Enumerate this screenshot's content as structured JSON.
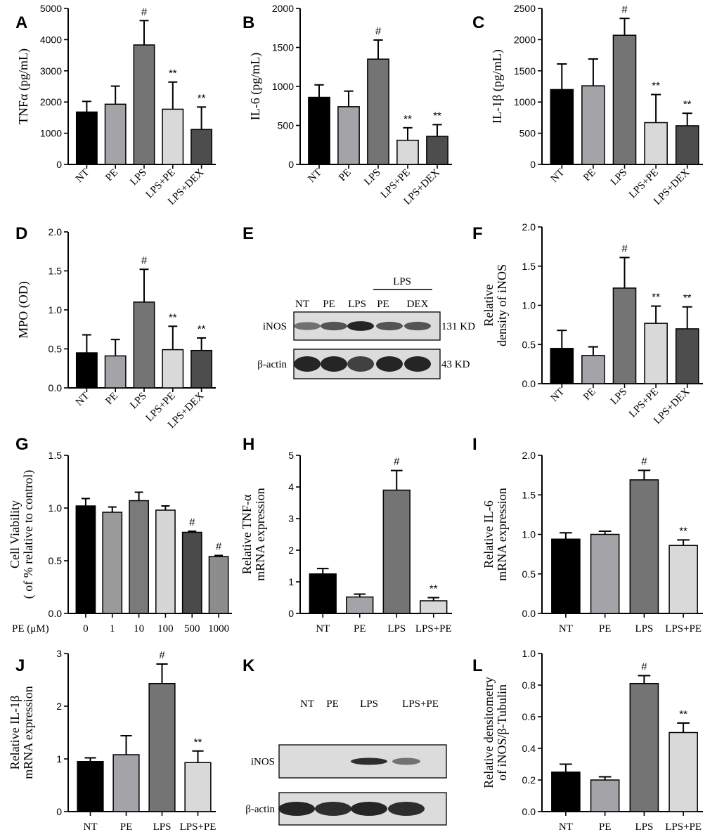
{
  "chart_data": [
    {
      "id": "A",
      "type": "bar",
      "ylabel": "TNFα (pg/mL)",
      "categories": [
        "NT",
        "PE",
        "LPS",
        "LPS+PE",
        "LPS+DEX"
      ],
      "values": [
        1680,
        1930,
        3830,
        1770,
        1120
      ],
      "errors": [
        340,
        580,
        780,
        870,
        720
      ],
      "annotations": [
        "",
        "",
        "#",
        "**",
        "**"
      ],
      "ylim": [
        0,
        5000
      ],
      "yticks": [
        "0",
        "1000",
        "2000",
        "3000",
        "4000",
        "5000"
      ]
    },
    {
      "id": "B",
      "type": "bar",
      "ylabel": "IL-6 (pg/mL)",
      "categories": [
        "NT",
        "PE",
        "LPS",
        "LPS+PE",
        "LPS+DEX"
      ],
      "values": [
        860,
        740,
        1350,
        310,
        360
      ],
      "errors": [
        160,
        200,
        245,
        160,
        150
      ],
      "annotations": [
        "",
        "",
        "#",
        "**",
        "**"
      ],
      "ylim": [
        0,
        2000
      ],
      "yticks": [
        "0",
        "500",
        "1000",
        "1500",
        "2000"
      ]
    },
    {
      "id": "C",
      "type": "bar",
      "ylabel": "IL-1β (pg/mL)",
      "categories": [
        "NT",
        "PE",
        "LPS",
        "LPS+PE",
        "LPS+DEX"
      ],
      "values": [
        1200,
        1260,
        2070,
        670,
        620
      ],
      "errors": [
        410,
        430,
        270,
        450,
        200
      ],
      "annotations": [
        "",
        "",
        "#",
        "**",
        "**"
      ],
      "ylim": [
        0,
        2500
      ],
      "yticks": [
        "0",
        "500",
        "1000",
        "1500",
        "2000",
        "2500"
      ]
    },
    {
      "id": "D",
      "type": "bar",
      "ylabel": "MPO (OD)",
      "categories": [
        "NT",
        "PE",
        "LPS",
        "LPS+PE",
        "LPS+DEX"
      ],
      "values": [
        0.45,
        0.41,
        1.1,
        0.49,
        0.48
      ],
      "errors": [
        0.23,
        0.21,
        0.42,
        0.3,
        0.16
      ],
      "annotations": [
        "",
        "",
        "#",
        "**",
        "**"
      ],
      "ylim": [
        0,
        2.0
      ],
      "yticks": [
        "0.0",
        "0.5",
        "1.0",
        "1.5",
        "2.0"
      ]
    },
    {
      "id": "F",
      "type": "bar",
      "ylabel_lines": [
        "Relative",
        "density of iNOS"
      ],
      "categories": [
        "NT",
        "PE",
        "LPS",
        "LPS+PE",
        "LPS+DEX"
      ],
      "values": [
        0.45,
        0.36,
        1.22,
        0.77,
        0.7
      ],
      "errors": [
        0.23,
        0.11,
        0.39,
        0.22,
        0.28
      ],
      "annotations": [
        "",
        "",
        "#",
        "**",
        "**"
      ],
      "ylim": [
        0,
        2.0
      ],
      "yticks": [
        "0.0",
        "0.5",
        "1.0",
        "1.5",
        "2.0"
      ]
    },
    {
      "id": "G",
      "type": "bar",
      "ylabel_lines": [
        "Cell Viability",
        "( of % relative to control)"
      ],
      "xlabel": "PE (μM)",
      "categories": [
        "0",
        "1",
        "10",
        "100",
        "500",
        "1000"
      ],
      "values": [
        1.02,
        0.96,
        1.07,
        0.98,
        0.77,
        0.54
      ],
      "errors": [
        0.07,
        0.05,
        0.08,
        0.04,
        0.01,
        0.01
      ],
      "annotations": [
        "",
        "",
        "",
        "",
        "#",
        "#"
      ],
      "ylim": [
        0,
        1.5
      ],
      "yticks": [
        "0.0",
        "0.5",
        "1.0",
        "1.5"
      ]
    },
    {
      "id": "H",
      "type": "bar",
      "ylabel_lines": [
        "Relative TNF-α",
        "mRNA expression"
      ],
      "categories": [
        "NT",
        "PE",
        "LPS",
        "LPS+PE"
      ],
      "values": [
        1.25,
        0.52,
        3.9,
        0.4
      ],
      "errors": [
        0.17,
        0.09,
        0.62,
        0.1
      ],
      "annotations": [
        "",
        "",
        "#",
        "**"
      ],
      "ylim": [
        0,
        5
      ],
      "yticks": [
        "0",
        "1",
        "2",
        "3",
        "4",
        "5"
      ]
    },
    {
      "id": "I",
      "type": "bar",
      "ylabel_lines": [
        "Relative IL-6",
        "mRNA expression"
      ],
      "categories": [
        "NT",
        "PE",
        "LPS",
        "LPS+PE"
      ],
      "values": [
        0.94,
        1.0,
        1.69,
        0.86
      ],
      "errors": [
        0.08,
        0.04,
        0.12,
        0.07
      ],
      "annotations": [
        "",
        "",
        "#",
        "**"
      ],
      "ylim": [
        0,
        2.0
      ],
      "yticks": [
        "0.0",
        "0.5",
        "1.0",
        "1.5",
        "2.0"
      ]
    },
    {
      "id": "J",
      "type": "bar",
      "ylabel_lines": [
        "Relative IL-1β",
        "mRNA expression"
      ],
      "categories": [
        "NT",
        "PE",
        "LPS",
        "LPS+PE"
      ],
      "values": [
        0.95,
        1.08,
        2.43,
        0.93
      ],
      "errors": [
        0.07,
        0.36,
        0.37,
        0.22
      ],
      "annotations": [
        "",
        "",
        "#",
        "**"
      ],
      "ylim": [
        0,
        3
      ],
      "yticks": [
        "0",
        "1",
        "2",
        "3"
      ]
    },
    {
      "id": "L",
      "type": "bar",
      "ylabel_lines": [
        "Relative densitometry",
        "of iNOS/β-Tubulin"
      ],
      "categories": [
        "NT",
        "PE",
        "LPS",
        "LPS+PE"
      ],
      "values": [
        0.25,
        0.2,
        0.81,
        0.5
      ],
      "errors": [
        0.05,
        0.02,
        0.05,
        0.06
      ],
      "annotations": [
        "",
        "",
        "#",
        "**"
      ],
      "ylim": [
        0,
        1.0
      ],
      "yticks": [
        "0.0",
        "0.2",
        "0.4",
        "0.6",
        "0.8",
        "1.0"
      ]
    }
  ],
  "blot_E": {
    "letter": "E",
    "group_label": "LPS",
    "lane_labels": [
      "NT",
      "PE",
      "LPS",
      "PE",
      "DEX"
    ],
    "rows": [
      {
        "protein": "iNOS",
        "size": "131 KD",
        "intensity": [
          0.55,
          0.7,
          0.95,
          0.7,
          0.7
        ]
      },
      {
        "protein": "β-actin",
        "size": "43 KD",
        "intensity": [
          0.95,
          0.95,
          0.8,
          0.95,
          0.95
        ]
      }
    ]
  },
  "blot_K": {
    "letter": "K",
    "lane_labels": [
      "NT",
      "PE",
      "LPS",
      "LPS+PE"
    ],
    "rows": [
      {
        "protein": "iNOS",
        "intensity": [
          0,
          0,
          0.9,
          0.55
        ]
      },
      {
        "protein": "β-actin",
        "intensity": [
          0.95,
          0.9,
          0.95,
          0.9
        ]
      }
    ]
  },
  "colors": {
    "bar_fills": [
      "#000000",
      "#a3a3a8",
      "#747474",
      "#d9d9d9",
      "#4d4d4d"
    ],
    "bar_fills_G": [
      "#000000",
      "#9a9a9a",
      "#7a7a7a",
      "#d6d6d6",
      "#4a4a4a",
      "#8d8d8d"
    ],
    "blot_bg": "#dcdcdc",
    "band": "#1a1a1a"
  }
}
